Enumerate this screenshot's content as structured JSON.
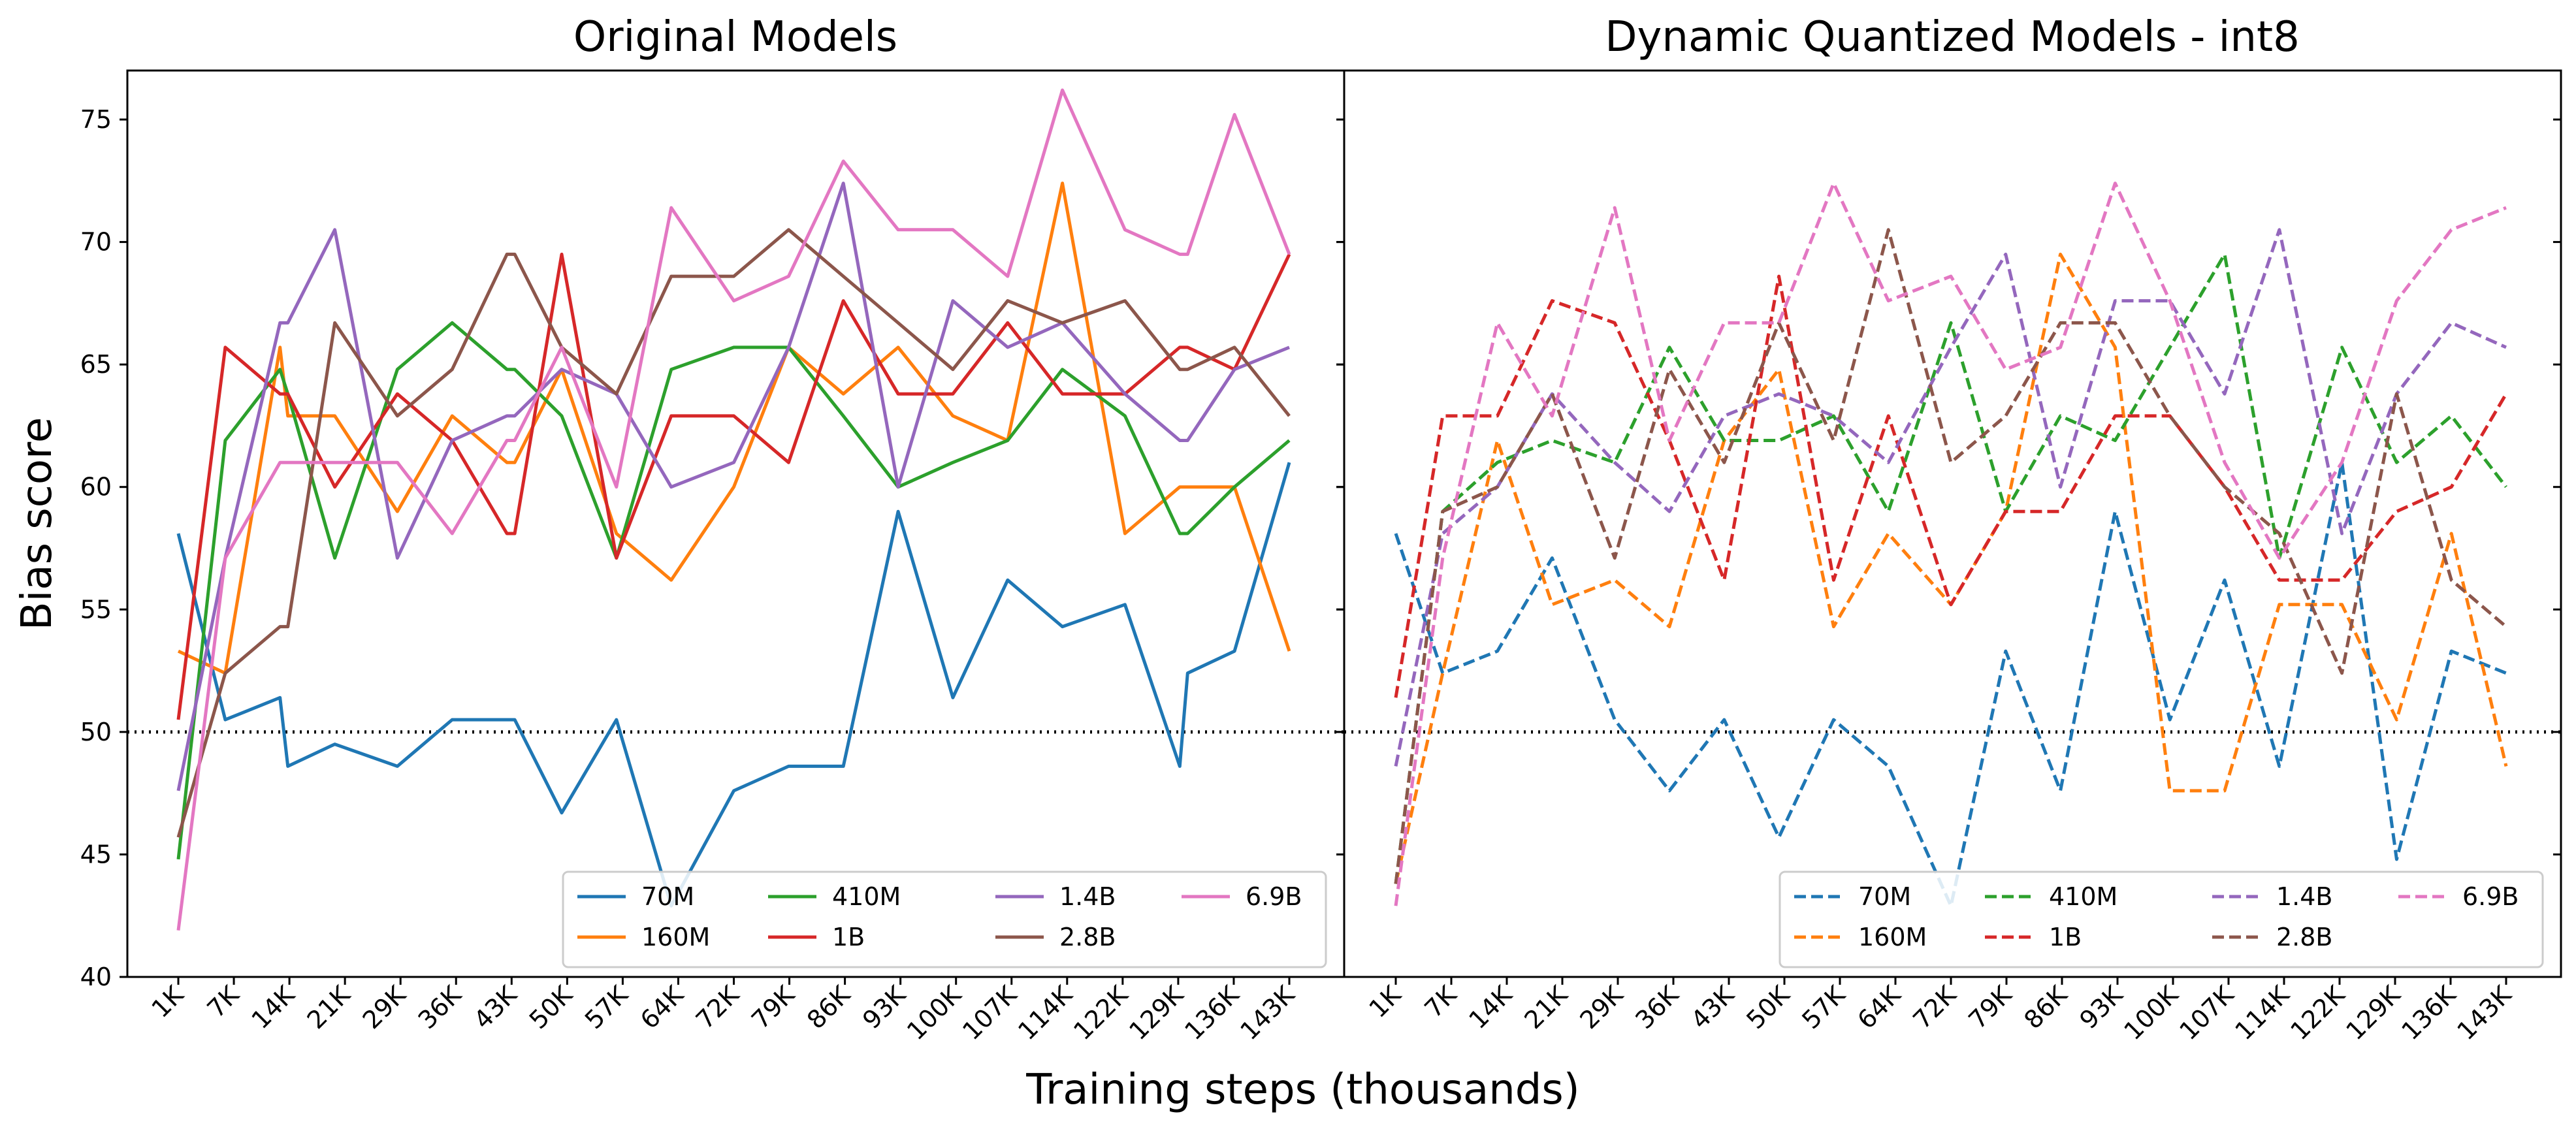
{
  "figure": {
    "ylabel": "Bias score",
    "xlabel": "Training steps (thousands)",
    "yticks": [
      40,
      45,
      50,
      55,
      60,
      65,
      70,
      75
    ],
    "colors": {
      "70M": "#1f77b4",
      "160M": "#ff7f0e",
      "410M": "#2ca02c",
      "1B": "#d62728",
      "1.4B": "#9467bd",
      "2.8B": "#8c564b",
      "6.9B": "#e377c2"
    }
  },
  "chart_data": [
    {
      "type": "line",
      "title": "Original Models",
      "linestyle": "solid",
      "xlabel": "Training steps (thousands)",
      "ylabel": "Bias score",
      "ylim": [
        40,
        77
      ],
      "reference_line": 50,
      "grid": false,
      "legend_position": "lower-right",
      "x": [
        1,
        7,
        14,
        15,
        21,
        29,
        36,
        43,
        44,
        50,
        57,
        64,
        72,
        79,
        86,
        93,
        100,
        107,
        114,
        122,
        129,
        130,
        136,
        143
      ],
      "tick_labels": [
        "1K",
        "7K",
        "14K",
        "21K",
        "29K",
        "36K",
        "43K",
        "50K",
        "57K",
        "64K",
        "72K",
        "79K",
        "86K",
        "93K",
        "100K",
        "107K",
        "114K",
        "122K",
        "129K",
        "136K",
        "143K"
      ],
      "series": [
        {
          "name": "70M",
          "values": [
            58.1,
            50.5,
            51.4,
            48.6,
            49.5,
            48.6,
            50.5,
            50.5,
            50.5,
            46.7,
            50.5,
            42.9,
            47.6,
            48.6,
            48.6,
            59.0,
            51.4,
            56.2,
            54.3,
            55.2,
            48.6,
            52.4,
            53.3,
            61.0
          ]
        },
        {
          "name": "160M",
          "values": [
            53.3,
            52.4,
            65.7,
            62.9,
            62.9,
            59.0,
            62.9,
            61.0,
            61.0,
            64.8,
            58.1,
            56.2,
            60.0,
            65.7,
            63.8,
            65.7,
            62.9,
            61.9,
            72.4,
            58.1,
            60.0,
            60.0,
            60.0,
            53.3
          ]
        },
        {
          "name": "410M",
          "values": [
            44.8,
            61.9,
            64.8,
            63.8,
            57.1,
            64.8,
            66.7,
            64.8,
            64.8,
            62.9,
            57.1,
            64.8,
            65.7,
            65.7,
            62.9,
            60.0,
            61.0,
            61.9,
            64.8,
            62.9,
            58.1,
            58.1,
            60.0,
            61.9
          ]
        },
        {
          "name": "1B",
          "values": [
            50.5,
            65.7,
            63.8,
            63.8,
            60.0,
            63.8,
            61.9,
            58.1,
            58.1,
            69.5,
            57.1,
            62.9,
            62.9,
            61.0,
            67.6,
            63.8,
            63.8,
            66.7,
            63.8,
            63.8,
            65.7,
            65.7,
            64.8,
            69.5
          ]
        },
        {
          "name": "1.4B",
          "values": [
            47.6,
            57.1,
            66.7,
            66.7,
            70.5,
            57.1,
            61.9,
            62.9,
            62.9,
            64.8,
            63.8,
            60.0,
            61.0,
            65.7,
            72.4,
            60.0,
            67.6,
            65.7,
            66.7,
            63.8,
            61.9,
            61.9,
            64.8,
            65.7
          ]
        },
        {
          "name": "2.8B",
          "values": [
            45.7,
            52.4,
            54.3,
            54.3,
            66.7,
            62.9,
            64.8,
            69.5,
            69.5,
            65.7,
            63.8,
            68.6,
            68.6,
            70.5,
            68.6,
            66.7,
            64.8,
            67.6,
            66.7,
            67.6,
            64.8,
            64.8,
            65.7,
            62.9
          ]
        },
        {
          "name": "6.9B",
          "values": [
            41.9,
            57.1,
            61.0,
            61.0,
            61.0,
            61.0,
            58.1,
            61.9,
            61.9,
            65.7,
            60.0,
            71.4,
            67.6,
            68.6,
            73.3,
            70.5,
            70.5,
            68.6,
            76.2,
            70.5,
            69.5,
            69.5,
            75.2,
            69.5
          ]
        }
      ]
    },
    {
      "type": "line",
      "title": "Dynamic Quantized Models - int8",
      "linestyle": "dashed",
      "xlabel": "Training steps (thousands)",
      "ylabel": "Bias score",
      "ylim": [
        40,
        77
      ],
      "reference_line": 50,
      "grid": false,
      "legend_position": "lower-right",
      "x": [
        1,
        7,
        14,
        21,
        29,
        36,
        43,
        50,
        57,
        64,
        72,
        79,
        86,
        93,
        100,
        107,
        114,
        122,
        129,
        136,
        143
      ],
      "tick_labels": [
        "1K",
        "7K",
        "14K",
        "21K",
        "29K",
        "36K",
        "43K",
        "50K",
        "57K",
        "64K",
        "72K",
        "79K",
        "86K",
        "93K",
        "100K",
        "107K",
        "114K",
        "122K",
        "129K",
        "136K",
        "143K"
      ],
      "series": [
        {
          "name": "70M",
          "values": [
            58.1,
            52.4,
            53.3,
            57.1,
            50.5,
            47.6,
            50.5,
            45.7,
            50.5,
            48.6,
            42.9,
            53.3,
            47.6,
            59.0,
            50.5,
            56.2,
            48.6,
            61.0,
            44.8,
            53.3,
            52.4
          ]
        },
        {
          "name": "160M",
          "values": [
            43.8,
            52.4,
            61.9,
            55.2,
            56.2,
            54.3,
            61.9,
            64.8,
            54.3,
            58.1,
            55.2,
            59.0,
            69.5,
            65.7,
            47.6,
            47.6,
            55.2,
            55.2,
            50.5,
            58.1,
            48.6
          ]
        },
        {
          "name": "410M",
          "values": [
            43.8,
            59.0,
            61.0,
            61.9,
            61.0,
            65.7,
            61.9,
            61.9,
            62.9,
            59.0,
            66.7,
            59.0,
            62.9,
            61.9,
            65.7,
            69.5,
            57.1,
            65.7,
            61.0,
            62.9,
            60.0
          ]
        },
        {
          "name": "1B",
          "values": [
            51.4,
            62.9,
            62.9,
            67.6,
            66.7,
            61.9,
            56.2,
            68.6,
            56.2,
            62.9,
            55.2,
            59.0,
            59.0,
            62.9,
            62.9,
            60.0,
            56.2,
            56.2,
            59.0,
            60.0,
            63.8
          ]
        },
        {
          "name": "1.4B",
          "values": [
            48.6,
            58.1,
            60.0,
            63.8,
            61.0,
            59.0,
            62.9,
            63.8,
            62.9,
            61.0,
            65.7,
            69.5,
            60.0,
            67.6,
            67.6,
            63.8,
            70.5,
            58.1,
            63.8,
            66.7,
            65.7
          ]
        },
        {
          "name": "2.8B",
          "values": [
            43.8,
            59.0,
            60.0,
            63.8,
            57.1,
            64.8,
            61.0,
            66.7,
            61.9,
            70.5,
            61.0,
            62.9,
            66.7,
            66.7,
            62.9,
            60.0,
            58.1,
            52.4,
            63.8,
            56.2,
            54.3
          ]
        },
        {
          "name": "6.9B",
          "values": [
            42.9,
            57.1,
            66.7,
            62.9,
            71.4,
            61.9,
            66.7,
            66.7,
            72.4,
            67.6,
            68.6,
            64.8,
            65.7,
            72.4,
            67.6,
            61.0,
            57.1,
            61.0,
            67.6,
            70.5,
            71.4
          ]
        }
      ]
    }
  ]
}
